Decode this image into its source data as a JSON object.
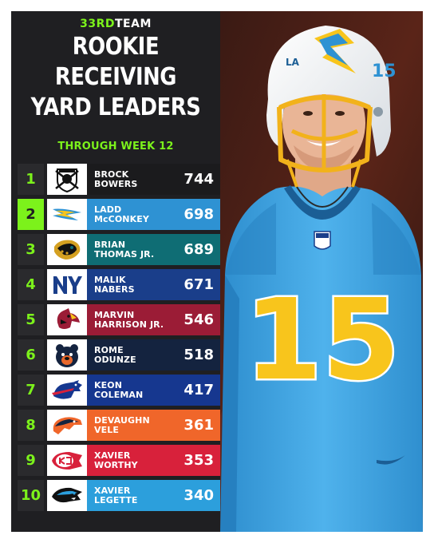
{
  "brand": {
    "prefix": "33RD",
    "suffix": "TEAM"
  },
  "title": [
    "ROOKIE",
    "RECEIVING",
    "YARD LEADERS"
  ],
  "subtitle": "THROUGH WEEK 12",
  "colors": {
    "accent": "#7cf21b",
    "panel": "#1f1f22"
  },
  "rows": [
    {
      "rank": "1",
      "first": "BROCK",
      "last": "BOWERS",
      "yards": "744",
      "team_icon": "raiders-icon",
      "bar": "#1b1b1d"
    },
    {
      "rank": "2",
      "first": "LADD",
      "last": "McCONKEY",
      "yards": "698",
      "team_icon": "chargers-icon",
      "bar": "#2e92d3"
    },
    {
      "rank": "3",
      "first": "BRIAN",
      "last": "THOMAS JR.",
      "yards": "689",
      "team_icon": "jaguars-icon",
      "bar": "#0f6d74"
    },
    {
      "rank": "4",
      "first": "MALIK",
      "last": "NABERS",
      "yards": "671",
      "team_icon": "giants-icon",
      "bar": "#1a3e8a"
    },
    {
      "rank": "5",
      "first": "MARVIN",
      "last": "HARRISON JR.",
      "yards": "546",
      "team_icon": "cardinals-icon",
      "bar": "#9b1c36"
    },
    {
      "rank": "6",
      "first": "ROME",
      "last": "ODUNZE",
      "yards": "518",
      "team_icon": "bears-icon",
      "bar": "#14233f"
    },
    {
      "rank": "7",
      "first": "KEON",
      "last": "COLEMAN",
      "yards": "417",
      "team_icon": "bills-icon",
      "bar": "#16378f"
    },
    {
      "rank": "8",
      "first": "DEVAUGHN",
      "last": "VELE",
      "yards": "361",
      "team_icon": "broncos-icon",
      "bar": "#f0662a"
    },
    {
      "rank": "9",
      "first": "XAVIER",
      "last": "WORTHY",
      "yards": "353",
      "team_icon": "chiefs-icon",
      "bar": "#d8213b"
    },
    {
      "rank": "10",
      "first": "XAVIER",
      "last": "LEGETTE",
      "yards": "340",
      "team_icon": "panthers-icon",
      "bar": "#2c9fdc"
    }
  ],
  "photo": {
    "jersey_number": "15",
    "helmet_mark": "LA"
  }
}
